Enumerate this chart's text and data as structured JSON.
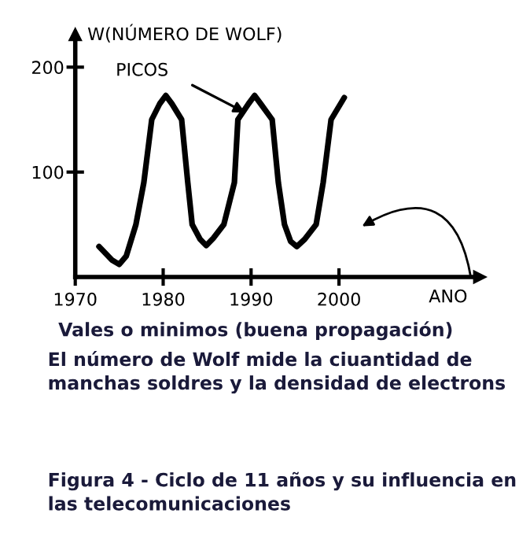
{
  "chart_data": {
    "type": "line",
    "ylabel": "W(NÚMERO DE WOLF)",
    "xlabel": "ANO",
    "x": [
      1972.7,
      1974.2,
      1975.0,
      1975.8,
      1976.9,
      1977.8,
      1978.7,
      1979.6,
      1980.3,
      1981.0,
      1982.1,
      1982.8,
      1983.3,
      1984.2,
      1984.9,
      1985.7,
      1986.9,
      1988.1,
      1988.5,
      1989.7,
      1990.4,
      1991.1,
      1992.4,
      1993.1,
      1993.8,
      1994.5,
      1995.2,
      1996.1,
      1997.4,
      1998.2,
      1999.1,
      2000.6
    ],
    "series": [
      {
        "color": "#000000",
        "values": [
          29,
          16,
          12,
          20,
          50,
          90,
          150,
          165,
          173,
          165,
          150,
          90,
          50,
          36,
          30,
          37,
          50,
          90,
          150,
          165,
          173,
          165,
          150,
          90,
          50,
          34,
          29,
          36,
          50,
          90,
          150,
          171
        ]
      }
    ],
    "xlim": [
      1970,
      2016
    ],
    "xticks": [
      1970,
      1980,
      1990,
      2000
    ],
    "ylim": [
      0,
      231
    ],
    "yticks": [
      100,
      200
    ],
    "marker": "none",
    "line_style": "solid",
    "grid": false,
    "legend": false,
    "annotations": [
      "PICOS",
      "Vales o minimos (buena propagación)",
      "El número de Wolf mide la ciuantidad de manchas soldres y la densidad de electrons",
      "Figura 4 - Ciclo de 11 años y su influencia en las telecomunicaciones"
    ]
  }
}
